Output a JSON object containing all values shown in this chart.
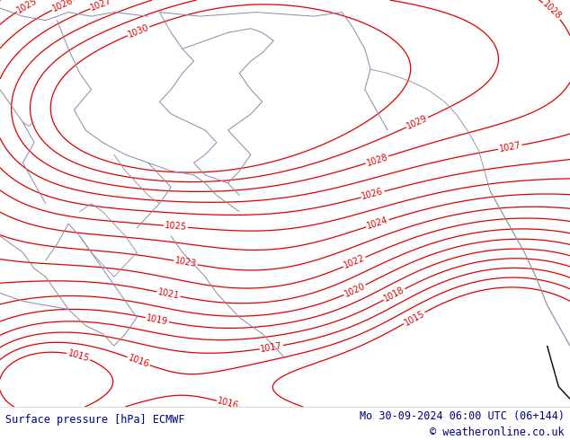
{
  "title_left": "Surface pressure [hPa] ECMWF",
  "title_right": "Mo 30-09-2024 06:00 UTC (06+144)",
  "copyright": "© weatheronline.co.uk",
  "bg_color": "#b5e878",
  "contour_color": "#dd0000",
  "border_color": "#8888aa",
  "text_color": "#000080",
  "footer_bg": "#ffffff",
  "pressure_min": 1015,
  "pressure_max": 1030,
  "pressure_step": 1,
  "figsize": [
    6.34,
    4.9
  ],
  "dpi": 100
}
